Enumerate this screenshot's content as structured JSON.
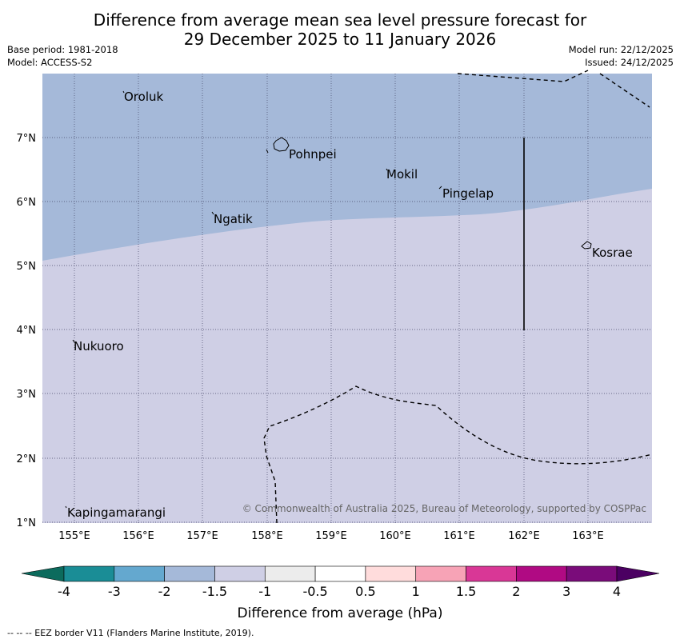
{
  "title_line1": "Difference from average mean sea level pressure forecast for",
  "title_line2": "29 December 2025 to 11 January 2026",
  "meta": {
    "base_period": "Base period: 1981-2018",
    "model": "Model: ACCESS-S2",
    "model_run": "Model run: 22/12/2025",
    "issued": "Issued: 24/12/2025"
  },
  "colors": {
    "band_neg2_to_neg1_5": "#a5b9d9",
    "band_neg1_5_to_neg1": "#cfcfe5",
    "grid": "#444466"
  },
  "map": {
    "lat_labels": [
      "7°N",
      "6°N",
      "5°N",
      "4°N",
      "3°N",
      "2°N",
      "1°N"
    ],
    "lon_labels": [
      "155°E",
      "156°E",
      "157°E",
      "158°E",
      "159°E",
      "160°E",
      "161°E",
      "162°E",
      "163°E"
    ],
    "places": [
      "Oroluk",
      "Pohnpei",
      "Mokil",
      "Pingelap",
      "Ngatik",
      "Kosrae",
      "Nukuoro",
      "Kapingamarangi"
    ],
    "copyright": "© Commonwealth of Australia 2025, Bureau of Meteorology, supported by COSPPac"
  },
  "colorbar": {
    "ticks": [
      "-4",
      "-3",
      "-2",
      "-1.5",
      "-1",
      "-0.5",
      "0.5",
      "1",
      "1.5",
      "2",
      "3",
      "4"
    ],
    "colors": [
      "#1a8d96",
      "#64a8cf",
      "#a5b9d9",
      "#cfcfe5",
      "#ececec",
      "#ffffff",
      "#ffdcdc",
      "#f7a3b6",
      "#d93796",
      "#b00a83",
      "#7a0c7a"
    ],
    "low_extend_color": "#0c6b5d",
    "high_extend_color": "#4b0062",
    "label": "Difference from average (hPa)"
  },
  "eez_note": "--  --  -- EEZ border V11 (Flanders Marine Institute, 2019)."
}
